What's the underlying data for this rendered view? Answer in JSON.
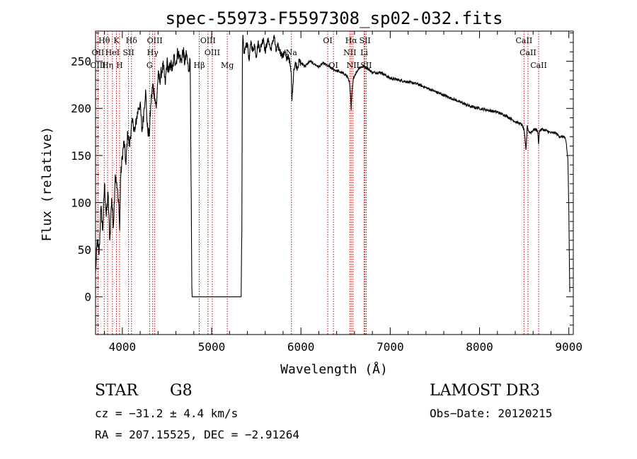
{
  "chart_data": {
    "type": "line",
    "title": "spec-55973-F5597308_sp02-032.fits",
    "xlabel": "Wavelength (Å)",
    "ylabel": "Flux (relative)",
    "xlim": [
      3700,
      9050
    ],
    "ylim": [
      -40,
      282
    ],
    "xticks": [
      4000,
      5000,
      6000,
      7000,
      8000,
      9000
    ],
    "yticks": [
      0,
      50,
      100,
      150,
      200,
      250
    ],
    "grid": false,
    "line_color": "#000000",
    "marker_color": "#cc0000",
    "series": [
      {
        "name": "flux",
        "x": [
          3700,
          3720,
          3740,
          3760,
          3780,
          3800,
          3820,
          3840,
          3860,
          3880,
          3900,
          3920,
          3940,
          3950,
          3960,
          3970,
          3980,
          4000,
          4020,
          4040,
          4060,
          4080,
          4100,
          4120,
          4140,
          4160,
          4180,
          4200,
          4220,
          4240,
          4260,
          4280,
          4300,
          4320,
          4340,
          4360,
          4380,
          4400,
          4420,
          4440,
          4460,
          4480,
          4500,
          4520,
          4540,
          4560,
          4580,
          4600,
          4620,
          4640,
          4660,
          4680,
          4700,
          4720,
          4740,
          4760,
          4778,
          4782,
          4790,
          4800,
          5330,
          5338,
          5345,
          5350,
          5360,
          5380,
          5400,
          5420,
          5440,
          5460,
          5480,
          5500,
          5520,
          5540,
          5560,
          5580,
          5600,
          5620,
          5640,
          5660,
          5680,
          5700,
          5720,
          5740,
          5760,
          5780,
          5800,
          5820,
          5840,
          5860,
          5880,
          5892,
          5900,
          5910,
          5920,
          5940,
          5960,
          5980,
          6000,
          6050,
          6100,
          6150,
          6200,
          6250,
          6300,
          6350,
          6400,
          6450,
          6500,
          6540,
          6555,
          6563,
          6572,
          6590,
          6620,
          6650,
          6700,
          6750,
          6800,
          6900,
          7000,
          7100,
          7200,
          7300,
          7400,
          7500,
          7600,
          7700,
          7800,
          7900,
          8000,
          8100,
          8200,
          8300,
          8400,
          8450,
          8480,
          8500,
          8520,
          8535,
          8542,
          8550,
          8570,
          8600,
          8630,
          8650,
          8662,
          8670,
          8700,
          8750,
          8800,
          8850,
          8900,
          8950,
          8970,
          8990,
          9000,
          9005,
          9010
        ],
        "y": [
          25,
          60,
          45,
          95,
          70,
          120,
          85,
          110,
          60,
          105,
          75,
          130,
          115,
          110,
          100,
          70,
          125,
          150,
          165,
          140,
          175,
          160,
          180,
          185,
          175,
          190,
          200,
          205,
          175,
          195,
          220,
          180,
          170,
          205,
          225,
          215,
          200,
          235,
          230,
          240,
          245,
          225,
          250,
          238,
          248,
          240,
          255,
          248,
          260,
          255,
          250,
          262,
          248,
          258,
          240,
          252,
          12,
          0,
          0,
          0,
          0,
          70,
          262,
          278,
          258,
          265,
          270,
          250,
          272,
          260,
          268,
          255,
          270,
          262,
          268,
          275,
          260,
          270,
          272,
          262,
          268,
          278,
          260,
          266,
          262,
          258,
          255,
          262,
          250,
          257,
          245,
          235,
          208,
          225,
          242,
          248,
          243,
          250,
          248,
          245,
          250,
          247,
          244,
          248,
          245,
          242,
          240,
          238,
          236,
          230,
          215,
          198,
          218,
          233,
          238,
          243,
          245,
          242,
          238,
          238,
          232,
          230,
          228,
          226,
          222,
          218,
          214,
          210,
          206,
          202,
          200,
          198,
          196,
          192,
          186,
          184,
          182,
          176,
          156,
          182,
          178,
          176,
          174,
          177,
          178,
          176,
          162,
          176,
          178,
          176,
          174,
          174,
          170,
          170,
          164,
          145,
          90,
          50,
          5
        ]
      }
    ],
    "spectral_lines": [
      {
        "label": "Hθ",
        "wavelength": 3797,
        "row": 1
      },
      {
        "label": "OII",
        "wavelength": 3727,
        "row": 2
      },
      {
        "label": "OIII",
        "wavelength": 3727,
        "row": 3
      },
      {
        "label": "Hη",
        "wavelength": 3835,
        "row": 3
      },
      {
        "label": "HeI",
        "wavelength": 3889,
        "row": 2
      },
      {
        "label": "K",
        "wavelength": 3934,
        "row": 1
      },
      {
        "label": "H",
        "wavelength": 3969,
        "row": 3
      },
      {
        "label": "SII",
        "wavelength": 4069,
        "row": 2
      },
      {
        "label": "Hδ",
        "wavelength": 4102,
        "row": 1
      },
      {
        "label": "OIII",
        "wavelength": 4363,
        "row": 1
      },
      {
        "label": "Hγ",
        "wavelength": 4340,
        "row": 2
      },
      {
        "label": "G",
        "wavelength": 4305,
        "row": 3
      },
      {
        "label": "Hβ",
        "wavelength": 4861,
        "row": 3
      },
      {
        "label": "OIII",
        "wavelength": 4959,
        "row": 1
      },
      {
        "label": "OIII",
        "wavelength": 5007,
        "row": 2
      },
      {
        "label": "Mg",
        "wavelength": 5175,
        "row": 3
      },
      {
        "label": "Na",
        "wavelength": 5893,
        "row": 2
      },
      {
        "label": "OI",
        "wavelength": 6300,
        "row": 1
      },
      {
        "label": "OI",
        "wavelength": 6364,
        "row": 3
      },
      {
        "label": "NII",
        "wavelength": 6548,
        "row": 2
      },
      {
        "label": "Hα",
        "wavelength": 6563,
        "row": 1
      },
      {
        "label": "NII",
        "wavelength": 6583,
        "row": 3
      },
      {
        "label": "SII",
        "wavelength": 6717,
        "row": 1
      },
      {
        "label": "Li",
        "wavelength": 6708,
        "row": 2
      },
      {
        "label": "SII",
        "wavelength": 6731,
        "row": 3
      },
      {
        "label": "CaII",
        "wavelength": 8498,
        "row": 1
      },
      {
        "label": "CaII",
        "wavelength": 8542,
        "row": 2
      },
      {
        "label": "CaII",
        "wavelength": 8662,
        "row": 3
      }
    ]
  },
  "info": {
    "object_class": "STAR",
    "subclass": "G8",
    "survey": "LAMOST DR3",
    "redshift_line": "cz = −31.2 ± 4.4 km/s",
    "obs_date_line": "Obs−Date: 20120215",
    "coords_line": "RA = 207.15525, DEC =  −2.91264"
  }
}
